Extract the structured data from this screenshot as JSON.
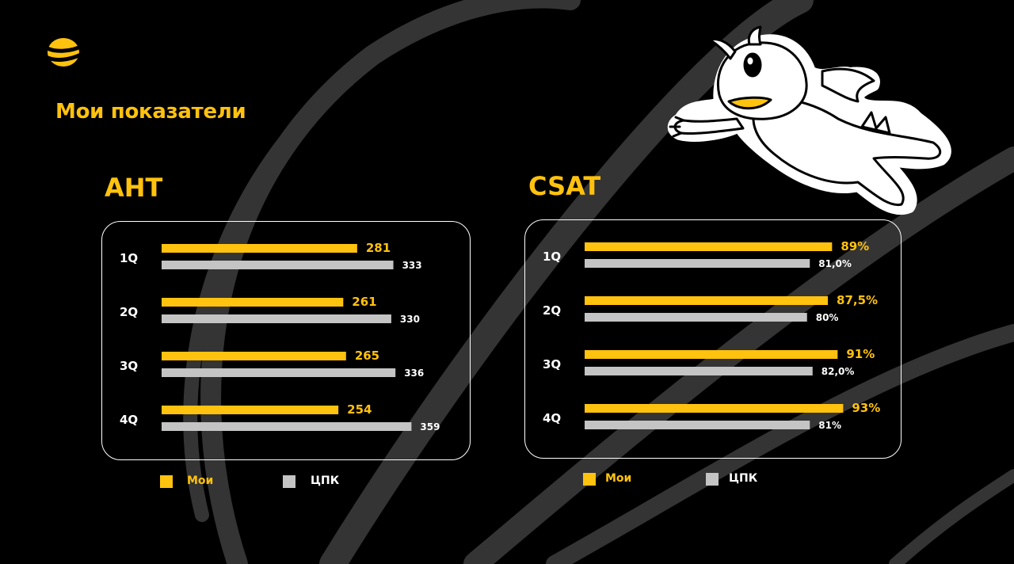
{
  "header": {
    "title": "Мои показатели"
  },
  "colors": {
    "accent": "#FFC20E",
    "grey": "#C4C4C4",
    "background": "#000000",
    "swoosh": "#333333"
  },
  "icons": {
    "logo": "beeline-logo",
    "mascot": "dragon-mascot"
  },
  "chart_data": [
    {
      "type": "bar",
      "orientation": "horizontal",
      "title": "AHT",
      "categories": [
        "1Q",
        "2Q",
        "3Q",
        "4Q"
      ],
      "series": [
        {
          "name": "Мои",
          "values": [
            281,
            261,
            265,
            254
          ],
          "labels": [
            "281",
            "261",
            "265",
            "254"
          ],
          "color": "#FFC20E"
        },
        {
          "name": "ЦПК",
          "values": [
            333,
            330,
            336,
            359
          ],
          "labels": [
            "333",
            "330",
            "336",
            "359"
          ],
          "color": "#C4C4C4"
        }
      ],
      "xlim": [
        0,
        420
      ],
      "grid": false,
      "legend": "bottom"
    },
    {
      "type": "bar",
      "orientation": "horizontal",
      "title": "CSAT",
      "categories": [
        "1Q",
        "2Q",
        "3Q",
        "4Q"
      ],
      "series": [
        {
          "name": "Мои",
          "values": [
            89,
            87.5,
            91,
            93
          ],
          "labels": [
            "89%",
            "87,5%",
            "91%",
            "93%"
          ],
          "color": "#FFC20E"
        },
        {
          "name": "ЦПК",
          "values": [
            81.0,
            80,
            82.0,
            81
          ],
          "labels": [
            "81,0%",
            "80%",
            "82,0%",
            "81%"
          ],
          "color": "#C4C4C4"
        }
      ],
      "xlim": [
        0,
        108
      ],
      "grid": false,
      "legend": "bottom"
    }
  ]
}
